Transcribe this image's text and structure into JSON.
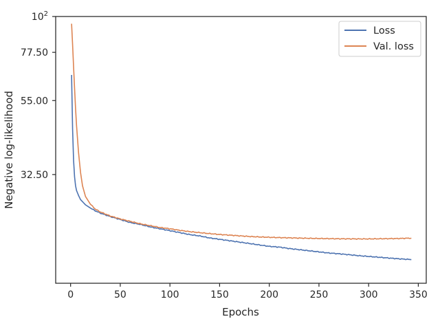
{
  "chart_data": {
    "type": "line",
    "title": "",
    "xlabel": "Epochs",
    "ylabel": "Negative log-likelihood",
    "xlim": [
      -15,
      358
    ],
    "ylim": [
      15,
      100
    ],
    "yscale": "log",
    "grid": false,
    "legend_position": "top-right",
    "x_ticks": [
      {
        "value": 0,
        "label": "0"
      },
      {
        "value": 50,
        "label": "50"
      },
      {
        "value": 100,
        "label": "100"
      },
      {
        "value": 150,
        "label": "150"
      },
      {
        "value": 200,
        "label": "200"
      },
      {
        "value": 250,
        "label": "250"
      },
      {
        "value": 300,
        "label": "300"
      },
      {
        "value": 350,
        "label": "350"
      }
    ],
    "y_ticks": [
      {
        "value": 32.5,
        "label": "32.50"
      },
      {
        "value": 55,
        "label": "55.00"
      },
      {
        "value": 77.5,
        "label": "77.50"
      },
      {
        "value": 100,
        "label": "10",
        "sup": "2"
      }
    ],
    "series": [
      {
        "name": "Loss",
        "color": "#4c72b0",
        "x": [
          1,
          2,
          3,
          4,
          5,
          6,
          8,
          10,
          15,
          20,
          25,
          30,
          40,
          50,
          60,
          70,
          80,
          90,
          100,
          110,
          120,
          130,
          140,
          150,
          160,
          170,
          180,
          190,
          200,
          210,
          220,
          230,
          240,
          250,
          260,
          270,
          280,
          290,
          300,
          310,
          320,
          330,
          343
        ],
        "y": [
          66,
          45,
          36,
          32,
          30,
          29,
          28,
          27.2,
          26.2,
          25.6,
          25.1,
          24.7,
          24.1,
          23.6,
          23.1,
          22.8,
          22.4,
          22.1,
          21.8,
          21.5,
          21.2,
          21.0,
          20.7,
          20.5,
          20.3,
          20.1,
          19.9,
          19.7,
          19.5,
          19.4,
          19.2,
          19.05,
          18.9,
          18.75,
          18.6,
          18.5,
          18.38,
          18.25,
          18.15,
          18.05,
          17.95,
          17.85,
          17.75
        ]
      },
      {
        "name": "Val. loss",
        "color": "#dd8452",
        "x": [
          1,
          2,
          3,
          4,
          5,
          6,
          8,
          10,
          12,
          15,
          20,
          25,
          30,
          40,
          50,
          60,
          70,
          80,
          90,
          100,
          110,
          120,
          130,
          140,
          150,
          160,
          170,
          180,
          190,
          200,
          210,
          220,
          230,
          240,
          250,
          260,
          270,
          280,
          290,
          300,
          310,
          320,
          330,
          343
        ],
        "y": [
          95,
          82,
          70,
          60,
          52,
          46,
          38,
          33,
          30,
          27.8,
          26.3,
          25.4,
          24.9,
          24.2,
          23.7,
          23.3,
          22.9,
          22.6,
          22.3,
          22.1,
          21.85,
          21.65,
          21.5,
          21.35,
          21.22,
          21.12,
          21.02,
          20.92,
          20.85,
          20.8,
          20.75,
          20.72,
          20.68,
          20.65,
          20.62,
          20.6,
          20.58,
          20.57,
          20.56,
          20.56,
          20.58,
          20.6,
          20.62,
          20.68
        ]
      }
    ]
  }
}
